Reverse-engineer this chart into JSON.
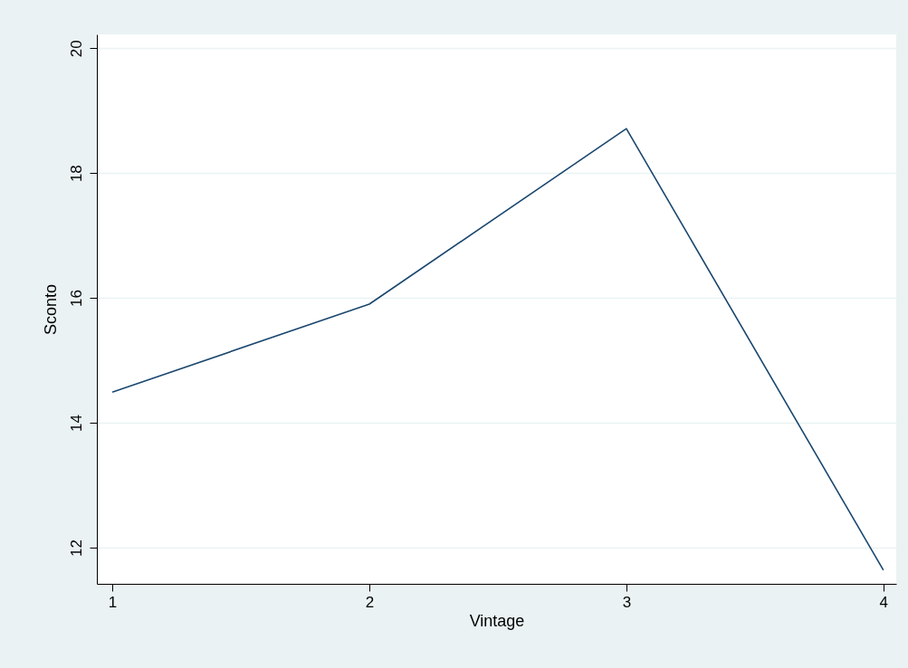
{
  "chart_data": {
    "type": "line",
    "xlabel": "Vintage",
    "ylabel": "Sconto",
    "x": [
      1,
      2,
      3,
      4
    ],
    "series": [
      {
        "color": "#1a476f",
        "values": [
          14.49,
          15.9,
          18.71,
          11.64
        ]
      }
    ],
    "xlim": [
      0.94,
      4.05
    ],
    "xticks": [
      1,
      2,
      3,
      4
    ],
    "ylim": [
      11.42,
      20.22
    ],
    "yticks": [
      12,
      14,
      16,
      18,
      20
    ],
    "grid": "y",
    "marker": "none",
    "line_style": "solid"
  }
}
